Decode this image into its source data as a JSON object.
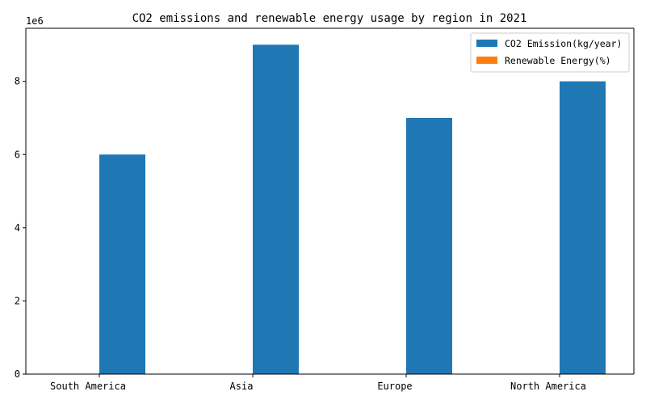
{
  "chart_data": {
    "type": "bar",
    "title": "CO2 emissions and renewable energy usage by region in 2021",
    "xlabel": "",
    "ylabel": "",
    "y_offset_label": "1e6",
    "categories": [
      "South America",
      "Asia",
      "Europe",
      "North America"
    ],
    "series": [
      {
        "name": "CO2 Emission(kg/year)",
        "color": "#1f77b4",
        "values": [
          6000000,
          9000000,
          7000000,
          8000000
        ]
      },
      {
        "name": "Renewable Energy(%)",
        "color": "#ff7f0e",
        "values": [
          0,
          0,
          0,
          0
        ]
      }
    ],
    "ylim": [
      0,
      9450000
    ],
    "yticks": [
      0,
      2000000,
      4000000,
      6000000,
      8000000
    ],
    "ytick_labels": [
      "0",
      "2",
      "4",
      "6",
      "8"
    ],
    "grid": false,
    "legend_position": "top-right"
  }
}
